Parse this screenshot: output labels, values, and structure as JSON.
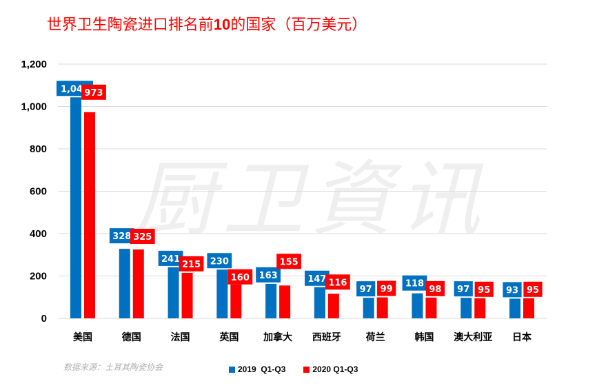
{
  "chart_data": {
    "type": "bar",
    "title": "世界卫生陶瓷进口排名前10的国家（百万美元）",
    "xlabel": "",
    "ylabel": "",
    "ylim": [
      0,
      1200
    ],
    "yticks": [
      0,
      200,
      400,
      600,
      800,
      1000,
      1200
    ],
    "ytick_labels": [
      "0",
      "200",
      "400",
      "600",
      "800",
      "1,000",
      "1,200"
    ],
    "grid": true,
    "legend_position": "bottom",
    "categories": [
      "美国",
      "德国",
      "法国",
      "英国",
      "加拿大",
      "西班牙",
      "荷兰",
      "韩国",
      "澳大利亚",
      "日本"
    ],
    "series": [
      {
        "name": "2019  Q1-Q3",
        "color": "#0070c0",
        "values": [
          1043,
          328,
          241,
          230,
          163,
          147,
          97,
          118,
          97,
          93
        ],
        "labels": [
          "1,043",
          "328",
          "241",
          "230",
          "163",
          "147",
          "97",
          "118",
          "97",
          "93"
        ]
      },
      {
        "name": "2020 Q1-Q3",
        "color": "#ff0000",
        "values": [
          973,
          325,
          215,
          160,
          155,
          116,
          99,
          98,
          95,
          95
        ],
        "labels": [
          "973",
          "325",
          "215",
          "160",
          "155",
          "116",
          "99",
          "98",
          "95",
          "95"
        ]
      }
    ],
    "watermark": "厨卫資讯",
    "source_note": "数据来源：土耳其陶瓷协会"
  },
  "title": {
    "before": "世界卫生陶瓷进口排名前",
    "num": "10",
    "after": "的国家（百万美元）"
  },
  "colors": {
    "title": "#ff0000",
    "series_2019": "#0070c0",
    "series_2020": "#ff0000",
    "grid": "#d9d9d9"
  }
}
